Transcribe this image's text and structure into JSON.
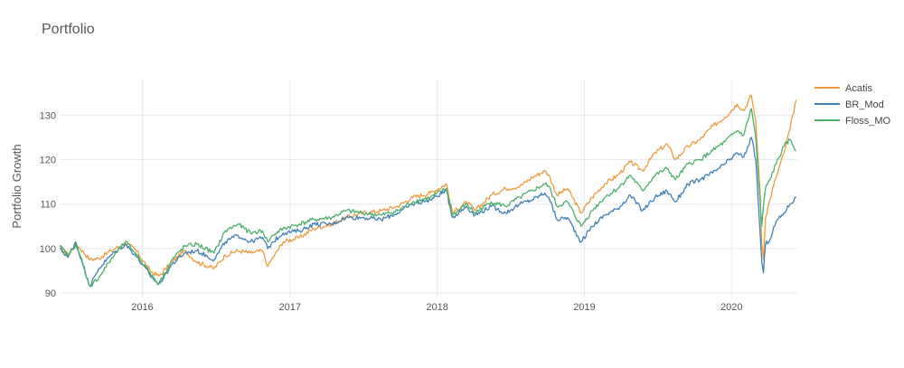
{
  "chart_data": {
    "type": "line",
    "title": "Portfolio",
    "xlabel": "",
    "ylabel": "Portfolio Growth",
    "xlim": [
      "2015-06-10",
      "2020-06-12"
    ],
    "ylim": [
      89,
      138
    ],
    "x_ticks": [
      {
        "label": "2016",
        "date": "2016-01-01"
      },
      {
        "label": "2017",
        "date": "2017-01-01"
      },
      {
        "label": "2018",
        "date": "2018-01-01"
      },
      {
        "label": "2019",
        "date": "2019-01-01"
      },
      {
        "label": "2020",
        "date": "2020-01-01"
      }
    ],
    "y_ticks": [
      90,
      100,
      110,
      120,
      130
    ],
    "grid": true,
    "legend_position": "top-right",
    "series": [
      {
        "name": "Acatis",
        "color": "#ef9b3d",
        "points": [
          [
            "2015-06-10",
            100.5
          ],
          [
            "2015-07-01",
            98.5
          ],
          [
            "2015-07-20",
            101.2
          ],
          [
            "2015-08-24",
            97.5
          ],
          [
            "2015-09-15",
            97.8
          ],
          [
            "2015-10-15",
            99.5
          ],
          [
            "2015-11-20",
            101.2
          ],
          [
            "2015-12-15",
            99.8
          ],
          [
            "2016-01-20",
            95.0
          ],
          [
            "2016-02-11",
            93.8
          ],
          [
            "2016-03-15",
            97.0
          ],
          [
            "2016-04-15",
            99.5
          ],
          [
            "2016-05-15",
            97.0
          ],
          [
            "2016-06-27",
            95.5
          ],
          [
            "2016-07-25",
            98.5
          ],
          [
            "2016-08-25",
            99.5
          ],
          [
            "2016-09-25",
            99.0
          ],
          [
            "2016-10-25",
            99.5
          ],
          [
            "2016-11-07",
            96.0
          ],
          [
            "2016-11-20",
            98.0
          ],
          [
            "2016-12-15",
            101.5
          ],
          [
            "2017-01-25",
            102.5
          ],
          [
            "2017-03-01",
            104.5
          ],
          [
            "2017-04-15",
            105.5
          ],
          [
            "2017-05-20",
            107.0
          ],
          [
            "2017-07-01",
            108.0
          ],
          [
            "2017-08-15",
            108.5
          ],
          [
            "2017-09-25",
            109.5
          ],
          [
            "2017-11-01",
            111.5
          ],
          [
            "2017-12-15",
            112.5
          ],
          [
            "2018-01-24",
            114.5
          ],
          [
            "2018-02-08",
            108.0
          ],
          [
            "2018-03-15",
            110.5
          ],
          [
            "2018-04-05",
            108.5
          ],
          [
            "2018-05-15",
            112.0
          ],
          [
            "2018-06-20",
            113.5
          ],
          [
            "2018-07-25",
            114.0
          ],
          [
            "2018-08-25",
            116.0
          ],
          [
            "2018-09-25",
            117.5
          ],
          [
            "2018-10-05",
            116.5
          ],
          [
            "2018-10-25",
            112.0
          ],
          [
            "2018-11-20",
            113.5
          ],
          [
            "2018-12-24",
            108.0
          ],
          [
            "2019-01-20",
            111.5
          ],
          [
            "2019-02-20",
            114.5
          ],
          [
            "2019-03-25",
            116.5
          ],
          [
            "2019-04-25",
            119.5
          ],
          [
            "2019-05-25",
            117.5
          ],
          [
            "2019-06-25",
            121.5
          ],
          [
            "2019-07-25",
            123.5
          ],
          [
            "2019-08-15",
            120.0
          ],
          [
            "2019-09-15",
            123.0
          ],
          [
            "2019-10-15",
            124.5
          ],
          [
            "2019-11-15",
            127.5
          ],
          [
            "2019-12-15",
            129.5
          ],
          [
            "2020-01-15",
            132.5
          ],
          [
            "2020-01-31",
            131.0
          ],
          [
            "2020-02-19",
            134.5
          ],
          [
            "2020-03-01",
            128.5
          ],
          [
            "2020-03-12",
            112.0
          ],
          [
            "2020-03-16",
            101.0
          ],
          [
            "2020-03-20",
            97.5
          ],
          [
            "2020-03-25",
            107.0
          ],
          [
            "2020-04-05",
            111.0
          ],
          [
            "2020-04-20",
            116.0
          ],
          [
            "2020-05-10",
            121.5
          ],
          [
            "2020-05-25",
            127.0
          ],
          [
            "2020-06-09",
            133.5
          ]
        ]
      },
      {
        "name": "BR_Mod",
        "color": "#3f80b5",
        "points": [
          [
            "2015-06-10",
            100.0
          ],
          [
            "2015-07-01",
            98.0
          ],
          [
            "2015-07-20",
            101.5
          ],
          [
            "2015-08-24",
            91.5
          ],
          [
            "2015-09-15",
            95.5
          ],
          [
            "2015-10-15",
            98.5
          ],
          [
            "2015-11-20",
            101.0
          ],
          [
            "2015-12-15",
            98.5
          ],
          [
            "2016-01-20",
            94.0
          ],
          [
            "2016-02-11",
            92.0
          ],
          [
            "2016-03-15",
            96.5
          ],
          [
            "2016-04-15",
            99.0
          ],
          [
            "2016-05-15",
            99.5
          ],
          [
            "2016-06-27",
            97.5
          ],
          [
            "2016-07-25",
            101.5
          ],
          [
            "2016-08-25",
            103.0
          ],
          [
            "2016-09-25",
            101.5
          ],
          [
            "2016-10-25",
            102.5
          ],
          [
            "2016-11-07",
            100.0
          ],
          [
            "2016-11-20",
            101.5
          ],
          [
            "2016-12-15",
            103.5
          ],
          [
            "2017-01-25",
            104.0
          ],
          [
            "2017-03-01",
            105.5
          ],
          [
            "2017-04-15",
            105.5
          ],
          [
            "2017-05-20",
            107.0
          ],
          [
            "2017-07-01",
            107.0
          ],
          [
            "2017-08-15",
            106.5
          ],
          [
            "2017-09-25",
            108.0
          ],
          [
            "2017-11-01",
            110.0
          ],
          [
            "2017-12-15",
            111.0
          ],
          [
            "2018-01-24",
            113.0
          ],
          [
            "2018-02-08",
            107.0
          ],
          [
            "2018-03-15",
            109.5
          ],
          [
            "2018-04-05",
            107.5
          ],
          [
            "2018-05-15",
            109.5
          ],
          [
            "2018-06-20",
            108.0
          ],
          [
            "2018-07-25",
            110.0
          ],
          [
            "2018-08-25",
            111.0
          ],
          [
            "2018-09-25",
            112.5
          ],
          [
            "2018-10-05",
            111.5
          ],
          [
            "2018-10-25",
            106.5
          ],
          [
            "2018-11-20",
            107.0
          ],
          [
            "2018-12-24",
            101.5
          ],
          [
            "2019-01-20",
            105.0
          ],
          [
            "2019-02-20",
            107.5
          ],
          [
            "2019-03-25",
            109.0
          ],
          [
            "2019-04-25",
            112.0
          ],
          [
            "2019-05-25",
            108.5
          ],
          [
            "2019-06-25",
            111.5
          ],
          [
            "2019-07-25",
            113.0
          ],
          [
            "2019-08-15",
            110.5
          ],
          [
            "2019-09-15",
            114.5
          ],
          [
            "2019-10-15",
            115.5
          ],
          [
            "2019-11-15",
            117.0
          ],
          [
            "2019-12-15",
            119.0
          ],
          [
            "2020-01-15",
            121.5
          ],
          [
            "2020-01-31",
            120.5
          ],
          [
            "2020-02-19",
            125.0
          ],
          [
            "2020-03-01",
            120.0
          ],
          [
            "2020-03-12",
            103.0
          ],
          [
            "2020-03-16",
            97.0
          ],
          [
            "2020-03-20",
            94.5
          ],
          [
            "2020-03-25",
            101.0
          ],
          [
            "2020-04-05",
            102.0
          ],
          [
            "2020-04-20",
            106.0
          ],
          [
            "2020-05-10",
            108.0
          ],
          [
            "2020-05-25",
            110.0
          ],
          [
            "2020-06-09",
            111.5
          ]
        ]
      },
      {
        "name": "Floss_MO",
        "color": "#4caf6a",
        "points": [
          [
            "2015-06-10",
            100.5
          ],
          [
            "2015-07-01",
            98.5
          ],
          [
            "2015-07-20",
            101.0
          ],
          [
            "2015-08-24",
            91.5
          ],
          [
            "2015-09-15",
            93.5
          ],
          [
            "2015-10-15",
            97.5
          ],
          [
            "2015-11-20",
            101.5
          ],
          [
            "2015-12-15",
            99.0
          ],
          [
            "2016-01-20",
            94.5
          ],
          [
            "2016-02-11",
            92.0
          ],
          [
            "2016-03-15",
            97.5
          ],
          [
            "2016-04-15",
            100.5
          ],
          [
            "2016-05-15",
            101.0
          ],
          [
            "2016-06-27",
            99.0
          ],
          [
            "2016-07-25",
            104.0
          ],
          [
            "2016-08-25",
            105.5
          ],
          [
            "2016-09-25",
            103.5
          ],
          [
            "2016-10-25",
            104.0
          ],
          [
            "2016-11-07",
            101.5
          ],
          [
            "2016-11-20",
            103.0
          ],
          [
            "2016-12-15",
            104.5
          ],
          [
            "2017-01-25",
            105.5
          ],
          [
            "2017-03-01",
            106.5
          ],
          [
            "2017-04-15",
            107.0
          ],
          [
            "2017-05-20",
            108.5
          ],
          [
            "2017-07-01",
            108.0
          ],
          [
            "2017-08-15",
            107.5
          ],
          [
            "2017-09-25",
            108.5
          ],
          [
            "2017-11-01",
            110.5
          ],
          [
            "2017-12-15",
            111.5
          ],
          [
            "2018-01-24",
            113.5
          ],
          [
            "2018-02-08",
            107.5
          ],
          [
            "2018-03-15",
            110.0
          ],
          [
            "2018-04-05",
            108.0
          ],
          [
            "2018-05-15",
            110.5
          ],
          [
            "2018-06-20",
            109.5
          ],
          [
            "2018-07-25",
            111.5
          ],
          [
            "2018-08-25",
            113.0
          ],
          [
            "2018-09-25",
            114.5
          ],
          [
            "2018-10-05",
            114.0
          ],
          [
            "2018-10-25",
            109.5
          ],
          [
            "2018-11-20",
            110.5
          ],
          [
            "2018-12-24",
            105.0
          ],
          [
            "2019-01-20",
            108.5
          ],
          [
            "2019-02-20",
            111.5
          ],
          [
            "2019-03-25",
            113.5
          ],
          [
            "2019-04-25",
            116.5
          ],
          [
            "2019-05-25",
            113.0
          ],
          [
            "2019-06-25",
            116.5
          ],
          [
            "2019-07-25",
            118.0
          ],
          [
            "2019-08-15",
            115.5
          ],
          [
            "2019-09-15",
            119.0
          ],
          [
            "2019-10-15",
            120.0
          ],
          [
            "2019-11-15",
            122.0
          ],
          [
            "2019-12-15",
            124.0
          ],
          [
            "2020-01-15",
            126.5
          ],
          [
            "2020-01-31",
            125.5
          ],
          [
            "2020-02-19",
            131.5
          ],
          [
            "2020-03-01",
            125.0
          ],
          [
            "2020-03-12",
            110.0
          ],
          [
            "2020-03-16",
            105.0
          ],
          [
            "2020-03-20",
            109.5
          ],
          [
            "2020-03-25",
            113.5
          ],
          [
            "2020-04-05",
            115.5
          ],
          [
            "2020-04-20",
            119.0
          ],
          [
            "2020-05-10",
            123.0
          ],
          [
            "2020-05-25",
            124.5
          ],
          [
            "2020-06-09",
            122.0
          ]
        ]
      }
    ]
  }
}
